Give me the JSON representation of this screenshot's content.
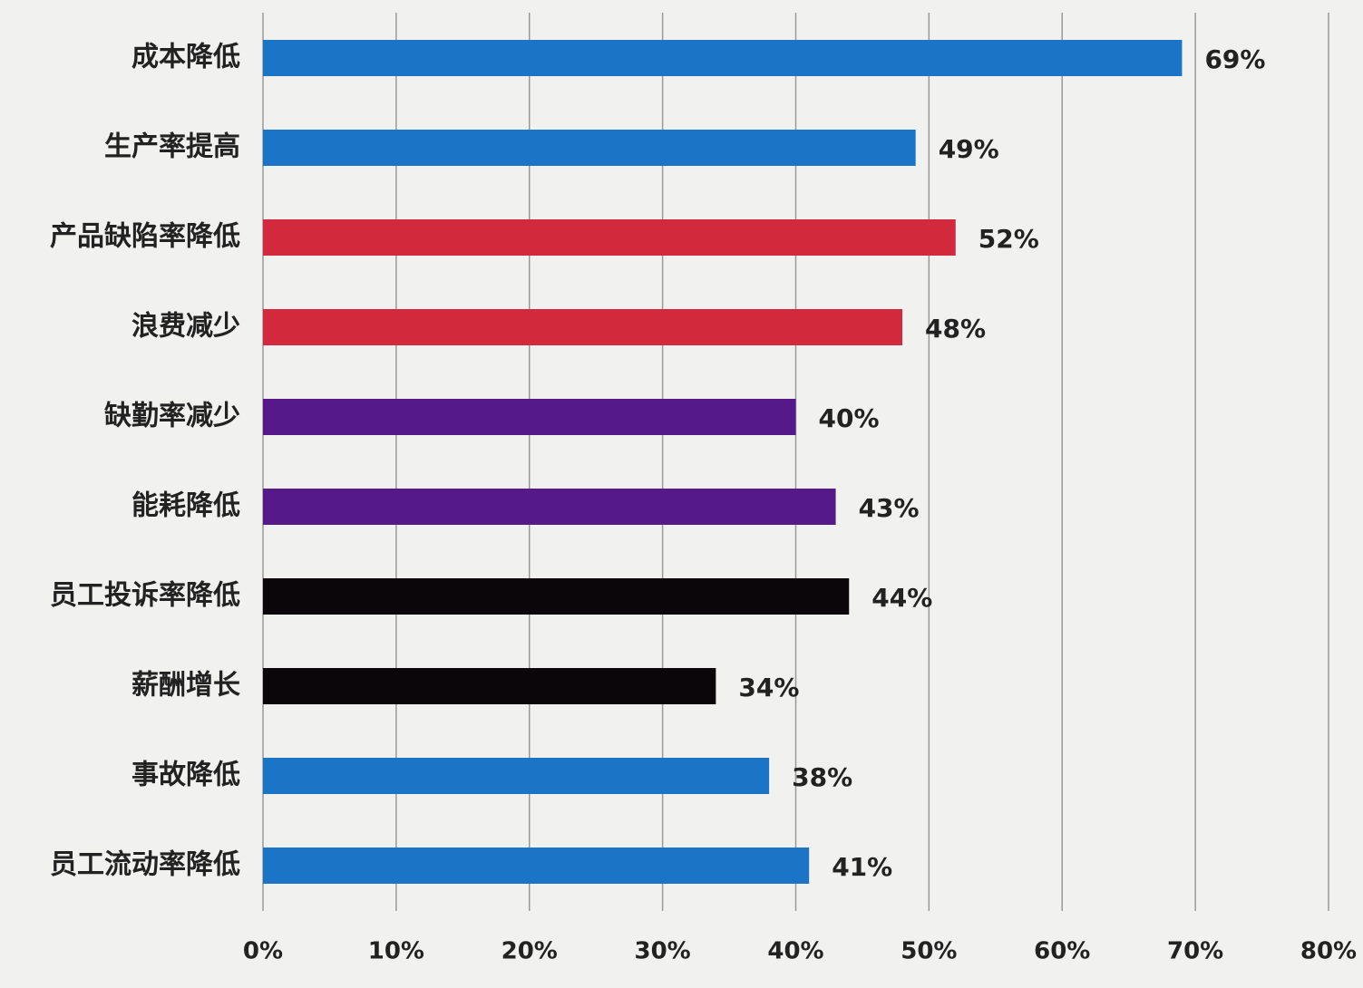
{
  "chart_data": {
    "type": "bar",
    "orientation": "horizontal",
    "categories": [
      "成本降低",
      "生产率提高",
      "产品缺陷率降低",
      "浪费减少",
      "缺勤率减少",
      "能耗降低",
      "员工投诉率降低",
      "薪酬增长",
      "事故降低",
      "员工流动率降低"
    ],
    "values": [
      69,
      49,
      52,
      48,
      40,
      43,
      44,
      34,
      38,
      41
    ],
    "value_labels": [
      "69%",
      "49%",
      "52%",
      "48%",
      "40%",
      "43%",
      "44%",
      "34%",
      "38%",
      "41%"
    ],
    "colors": [
      "#1c74c6",
      "#1c74c6",
      "#d22a3c",
      "#d22a3c",
      "#55198a",
      "#55198a",
      "#0b0609",
      "#0b0609",
      "#1c74c6",
      "#1c74c6"
    ],
    "xlim": [
      0,
      80
    ],
    "xticks": [
      {
        "value": 0,
        "label": "0%"
      },
      {
        "value": 10,
        "label": "10%"
      },
      {
        "value": 20,
        "label": "20%"
      },
      {
        "value": 30,
        "label": "30%"
      },
      {
        "value": 40,
        "label": "40%"
      },
      {
        "value": 50,
        "label": "50%"
      },
      {
        "value": 60,
        "label": "60%"
      },
      {
        "value": 70,
        "label": "70%"
      },
      {
        "value": 80,
        "label": "80%"
      }
    ],
    "grid": true
  }
}
